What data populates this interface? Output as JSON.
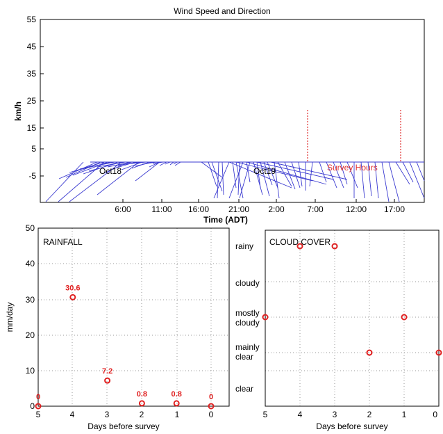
{
  "wind": {
    "title": "Wind Speed and Direction",
    "ylabel": "km/h",
    "xlabel": "Time (ADT)",
    "yticks": [
      "55",
      "45",
      "35",
      "25",
      "15",
      "5",
      "-5"
    ],
    "xticks": [
      "6:00",
      "11:00",
      "16:00",
      "21:00",
      "2:00",
      "7:00",
      "12:00",
      "17:00"
    ],
    "annotations": [
      "Oct18",
      "Oct19",
      "Survey Hours"
    ],
    "colors": {
      "vector": "#3a3ad0",
      "survey": "#e03030"
    }
  },
  "chart_data": [
    {
      "type": "scatter",
      "title": "RAINFALL",
      "xlabel": "Days before survey",
      "ylabel": "mm/day",
      "xlim": [
        5,
        0
      ],
      "ylim": [
        0,
        50
      ],
      "xticks": [
        "5",
        "4",
        "3",
        "2",
        "1",
        "0"
      ],
      "yticks": [
        "50",
        "40",
        "30",
        "20",
        "10",
        "0"
      ],
      "x": [
        5,
        4,
        3,
        2,
        1,
        0
      ],
      "y": [
        0,
        30.6,
        7.2,
        0.8,
        0.8,
        0
      ],
      "labels": [
        "0",
        "30.6",
        "7.2",
        "0.8",
        "0.8",
        "0"
      ],
      "grid": true,
      "marker_color": "#e02020"
    },
    {
      "type": "scatter",
      "title": "CLOUD COVER",
      "xlabel": "Days before survey",
      "xlim": [
        5,
        0
      ],
      "xticks": [
        "5",
        "4",
        "3",
        "2",
        "1",
        "0"
      ],
      "categories": [
        "rainy",
        "cloudy",
        "mostly cloudy",
        "mainly clear",
        "clear"
      ],
      "x": [
        5,
        4,
        3,
        2,
        1,
        0
      ],
      "y": [
        "mostly cloudy",
        "rainy",
        "rainy",
        "mainly clear",
        "mostly cloudy",
        "mainly clear"
      ],
      "grid": true,
      "marker_color": "#e02020"
    }
  ]
}
